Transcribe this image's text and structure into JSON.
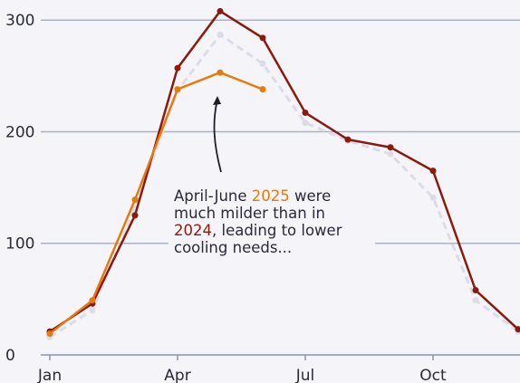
{
  "chart_data": {
    "type": "line",
    "categories": [
      "Jan",
      null,
      null,
      "Apr",
      null,
      null,
      "Jul",
      null,
      null,
      "Oct",
      null,
      null
    ],
    "series": [
      {
        "color": "#dcdbe8",
        "dashed": true,
        "values": [
          16,
          40,
          131,
          237,
          287,
          261,
          208,
          192,
          180,
          141,
          49,
          21
        ]
      },
      {
        "name": "2024",
        "color": "#8b1a0e",
        "values": [
          21,
          46,
          125,
          257,
          308,
          284,
          217,
          193,
          186,
          165,
          58,
          23
        ]
      },
      {
        "name": "2025",
        "color": "#e8790f",
        "values": [
          19,
          49,
          139,
          238,
          253,
          238,
          null,
          null,
          null,
          null,
          null,
          null
        ]
      }
    ],
    "ylim": [
      0,
      318
    ],
    "yticks": [
      0,
      100,
      200,
      300
    ],
    "grid": true,
    "annotation": [
      [
        {
          "text": "April-June "
        },
        {
          "text": "2025",
          "color": "#e8790f"
        },
        {
          "text": " were"
        }
      ],
      [
        {
          "text": "much milder than in"
        }
      ],
      [
        {
          "text": "2024",
          "color": "#8b1a0e"
        },
        {
          "text": ", leading to lower"
        }
      ],
      [
        {
          "text": "cooling needs..."
        }
      ]
    ]
  }
}
